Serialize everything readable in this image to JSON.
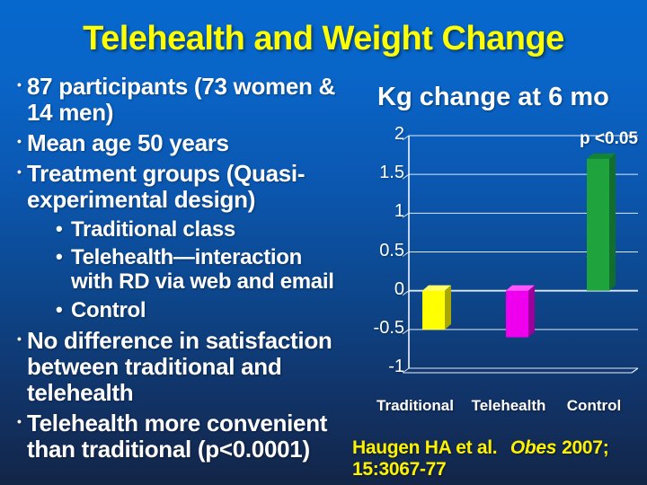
{
  "slide": {
    "title": "Telehealth and Weight Change",
    "bullets": [
      {
        "level": 1,
        "text": "87 participants (73 women & 14 men)"
      },
      {
        "level": 1,
        "text": "Mean age 50 years"
      },
      {
        "level": 1,
        "text": "Treatment groups (Quasi-experimental design)"
      },
      {
        "level": 2,
        "text": "Traditional class"
      },
      {
        "level": 2,
        "text": "Telehealth—interaction with RD via web and email"
      },
      {
        "level": 2,
        "text": "Control"
      },
      {
        "level": 1,
        "text": "No difference in satisfaction between traditional and telehealth"
      },
      {
        "level": 1,
        "text": "Telehealth more convenient than traditional (p<0.0001)"
      }
    ],
    "citation": {
      "authors": "Haugen HA et al.",
      "journal": "Obes",
      "year": "2007;",
      "pages": "15:3067-77"
    }
  },
  "chart_data": {
    "type": "bar",
    "title": "Kg change at 6 mo",
    "categories": [
      "Traditional",
      "Telehealth",
      "Control"
    ],
    "values": [
      -0.5,
      -0.6,
      1.7
    ],
    "annotation": "p <0.05",
    "xlabel": "",
    "ylabel": "",
    "ylim": [
      -1,
      2
    ],
    "yticks": [
      2,
      1.5,
      1,
      0.5,
      0,
      -0.5,
      -1
    ],
    "grid": true,
    "style": "3d",
    "legend": false,
    "bar_colors": [
      {
        "name": "traditional-bar",
        "front": "#FFFF00",
        "side": "#A8A800",
        "top": "#FFFF66"
      },
      {
        "name": "telehealth-bar",
        "front": "#EE00EE",
        "side": "#9B009B",
        "top": "#FF55FF"
      },
      {
        "name": "control-bar",
        "front": "#1FA33C",
        "side": "#116E2C",
        "top": "#148434"
      }
    ]
  },
  "colors": {
    "background_top": "#0667CC",
    "background_bottom": "#132547",
    "title_text": "#FFFF00",
    "body_text": "#FFFFFF",
    "citation_text": "#FFF200",
    "gridline": "#DCE9F7"
  }
}
